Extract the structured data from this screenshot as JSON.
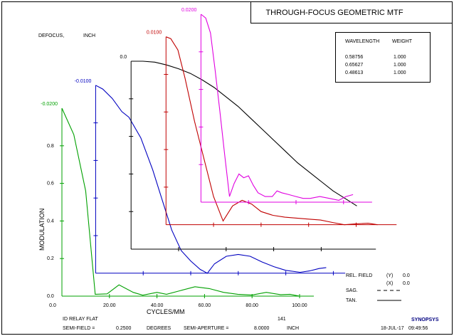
{
  "chart_data": {
    "type": "line",
    "title": "THROUGH-FOCUS GEOMETRIC MTF",
    "defocus_label": "DEFOCUS,",
    "defocus_unit": "INCH",
    "xlabel": "CYCLES/MM",
    "ylabel": "MODULATION",
    "x_ticks": [
      "0.0",
      "20.00",
      "40.00",
      "60.00",
      "80.00",
      "100.00"
    ],
    "y_ticks": [
      "0.0",
      "0.2",
      "0.4",
      "0.6",
      "0.8"
    ],
    "xlim": [
      0,
      106
    ],
    "ylim": [
      0,
      1.0
    ],
    "wavelength_table": {
      "header_wavelength": "WAVELENGTH",
      "header_weight": "WEIGHT",
      "rows": [
        {
          "wavelength": "0.58756",
          "weight": "1.000"
        },
        {
          "wavelength": "0.65627",
          "weight": "1.000"
        },
        {
          "wavelength": "0.48613",
          "weight": "1.000"
        }
      ]
    },
    "series": [
      {
        "name": "-0.0200",
        "color": "#00a000",
        "offset": [
          0,
          0
        ],
        "x": [
          0,
          5,
          10,
          14,
          19,
          24,
          30,
          34,
          40,
          44,
          50,
          56,
          62,
          68,
          74,
          80,
          86,
          92,
          96,
          100
        ],
        "y": [
          1.0,
          0.86,
          0.56,
          0.01,
          0.012,
          0.06,
          0.02,
          0.005,
          0.02,
          0.01,
          0.03,
          0.05,
          0.04,
          0.02,
          0.01,
          0.006,
          0.02,
          0.008,
          0.01,
          0.0
        ]
      },
      {
        "name": "-0.0100",
        "color": "#0000c0",
        "offset": [
          14.2,
          0.122
        ],
        "x": [
          0,
          3,
          7,
          11,
          14,
          19,
          24,
          28,
          32,
          36,
          40,
          44,
          47,
          50,
          55,
          60,
          65,
          70,
          75,
          80,
          86,
          90,
          94,
          97
        ],
        "y": [
          1.0,
          0.98,
          0.93,
          0.86,
          0.83,
          0.72,
          0.55,
          0.39,
          0.23,
          0.12,
          0.065,
          0.02,
          0.0,
          0.05,
          0.09,
          0.1,
          0.09,
          0.06,
          0.035,
          0.015,
          0.005,
          0.012,
          0.025,
          0.03
        ]
      },
      {
        "name": "0.0",
        "color": "#000000",
        "offset": [
          29.1,
          0.25
        ],
        "x": [
          0,
          5,
          10,
          15,
          20,
          25,
          30,
          35,
          40,
          45,
          50,
          55,
          60,
          65,
          70,
          75,
          80,
          85,
          90,
          95
        ],
        "y": [
          1.0,
          1.0,
          0.995,
          0.98,
          0.96,
          0.935,
          0.9,
          0.86,
          0.81,
          0.76,
          0.7,
          0.64,
          0.58,
          0.52,
          0.46,
          0.41,
          0.36,
          0.31,
          0.27,
          0.23
        ]
      },
      {
        "name": "0.0100",
        "color": "#c00000",
        "offset": [
          43.8,
          0.38
        ],
        "x": [
          0,
          2,
          5,
          8,
          12,
          16,
          20,
          24,
          28,
          32,
          36,
          40,
          45,
          50,
          55,
          60,
          65,
          70,
          75,
          80,
          85,
          89
        ],
        "y": [
          1.0,
          0.99,
          0.93,
          0.78,
          0.55,
          0.35,
          0.15,
          0.02,
          0.1,
          0.13,
          0.11,
          0.07,
          0.05,
          0.04,
          0.035,
          0.03,
          0.025,
          0.012,
          0.0,
          0.005,
          0.008,
          0.0
        ]
      },
      {
        "name": "0.0200",
        "color": "#e000e0",
        "offset": [
          58.5,
          0.5
        ],
        "x": [
          0,
          2,
          4,
          6,
          8,
          10,
          12,
          14,
          16,
          18,
          20,
          22,
          24,
          27,
          30,
          32,
          34,
          37,
          40,
          43,
          46,
          50,
          54,
          58,
          61,
          64
        ],
        "y": [
          1.0,
          0.98,
          0.9,
          0.7,
          0.48,
          0.25,
          0.03,
          0.1,
          0.15,
          0.13,
          0.14,
          0.09,
          0.05,
          0.03,
          0.03,
          0.06,
          0.05,
          0.04,
          0.03,
          0.02,
          0.02,
          0.03,
          0.02,
          0.01,
          0.03,
          0.04
        ]
      }
    ],
    "legend": {
      "rel_field_label": "REL. FIELD",
      "y_marker": "(Y)",
      "y_value": "0.0",
      "x_marker": "(X)",
      "x_value": "0.0",
      "sag_label": "SAG.",
      "tan_label": "TAN."
    },
    "footer": {
      "system_title": "ID RELAY FLAT",
      "surface_count": "141",
      "semi_field_label": "SEMI-FIELD =",
      "semi_field_value": "0.2500",
      "semi_field_unit": "DEGREES",
      "semi_aperture_label": "SEMI-APERTURE =",
      "semi_aperture_value": "8.0000",
      "semi_aperture_unit": "INCH",
      "brand": "SYNOPSYS",
      "date": "18-JUL-17",
      "time": "09:49:56"
    }
  }
}
